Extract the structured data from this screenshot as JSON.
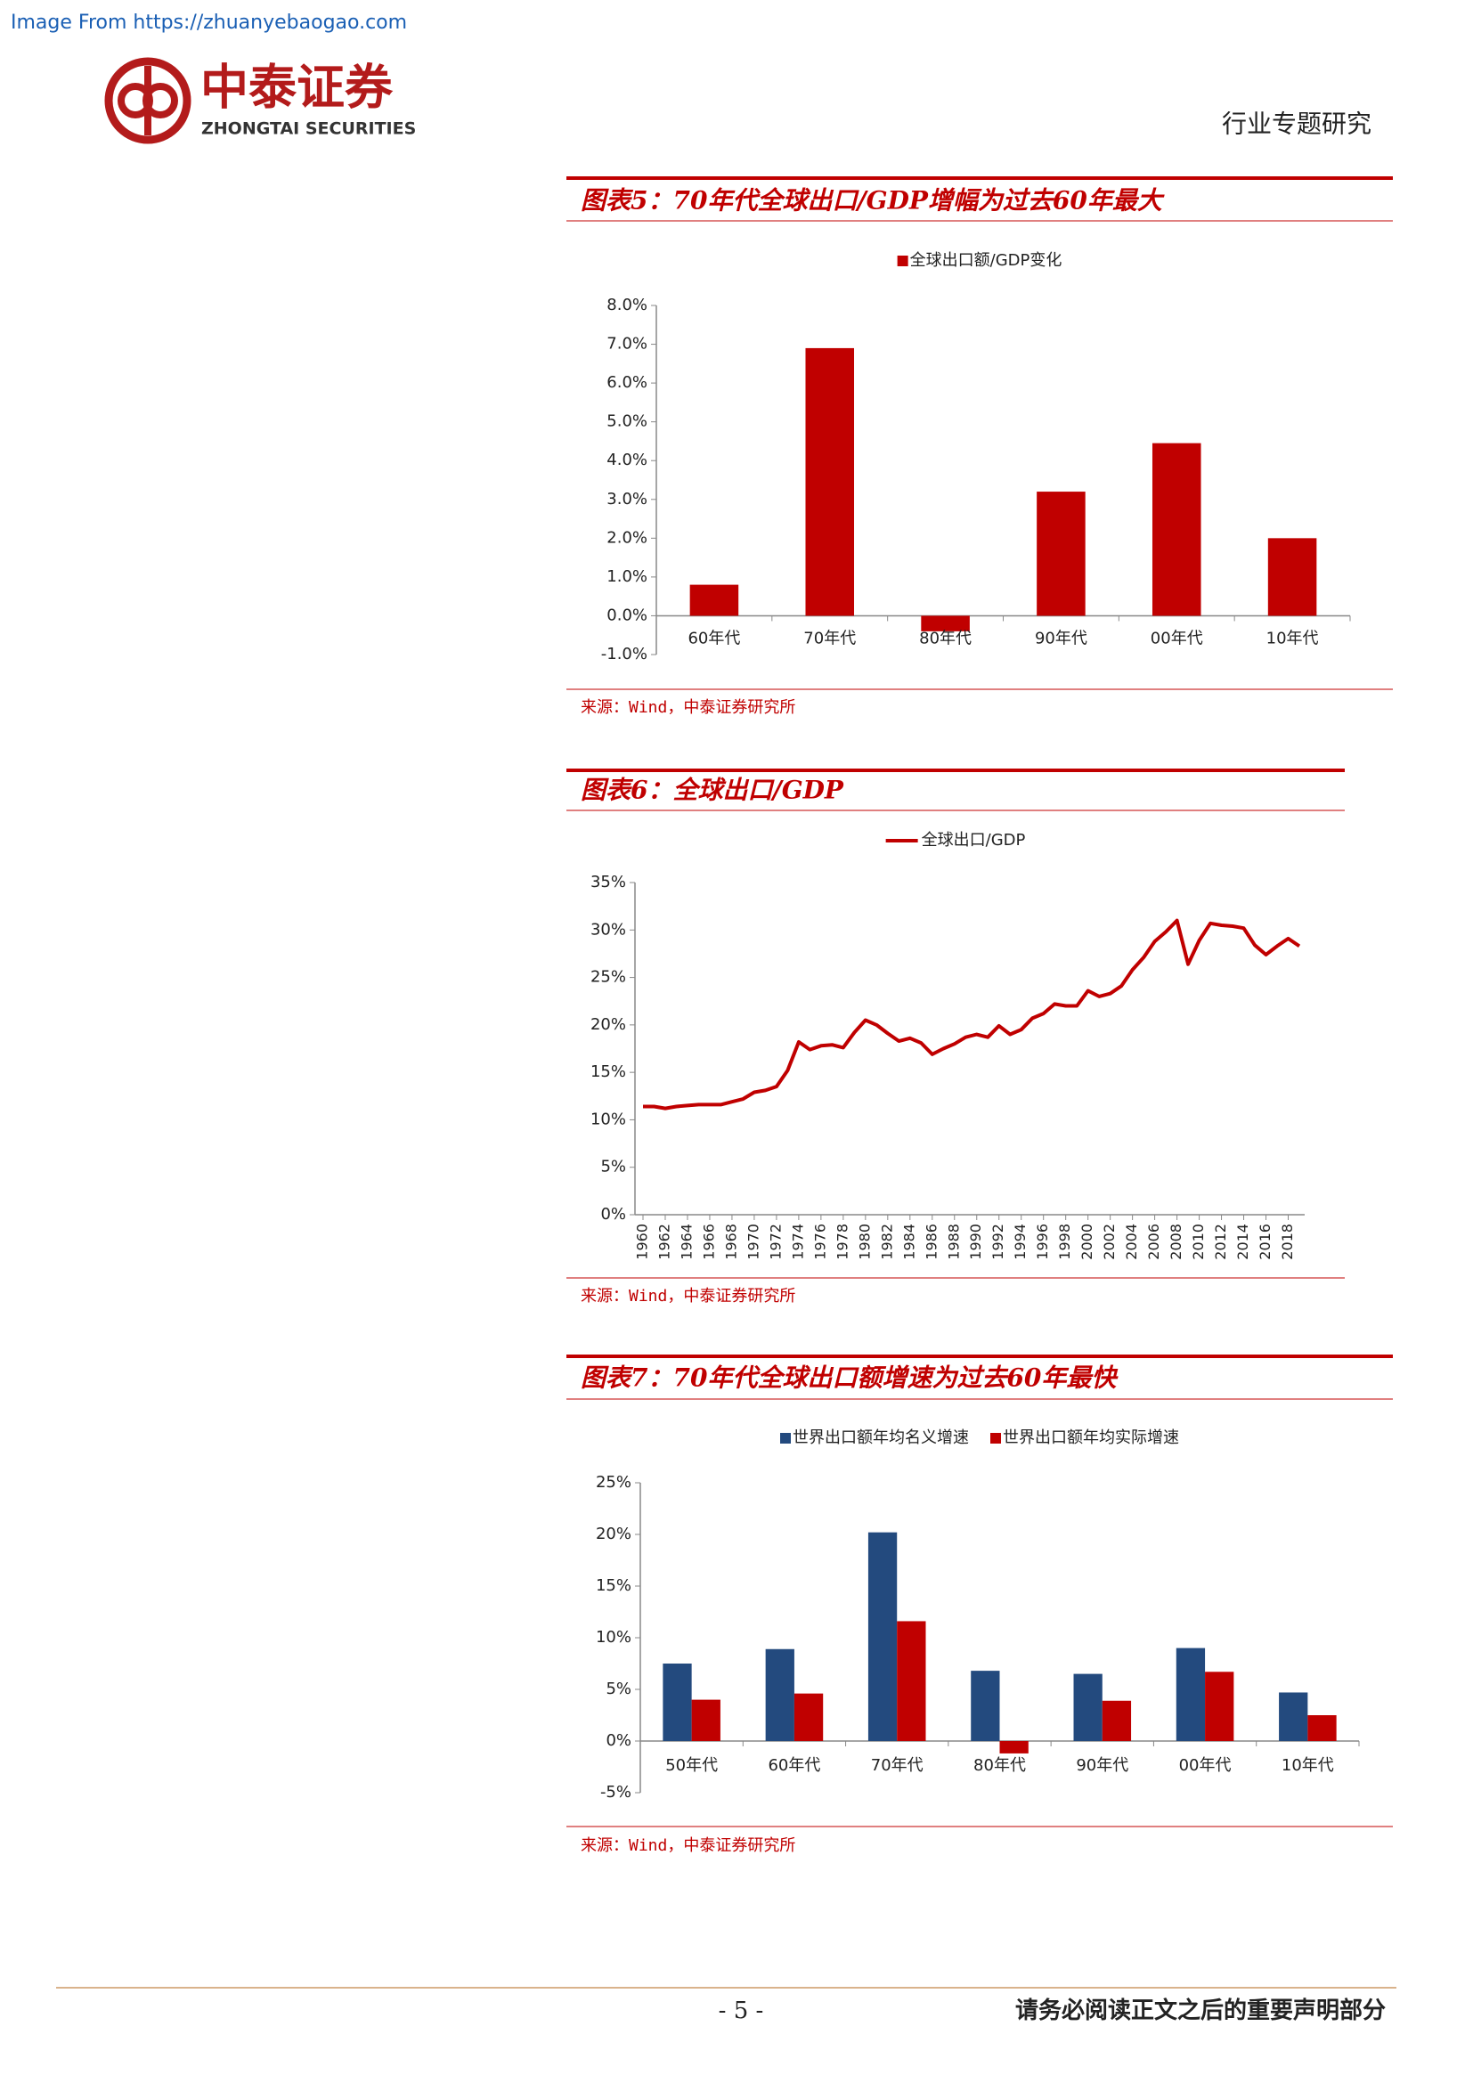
{
  "header": {
    "watermark": "Image From https://zhuanyebaogao.com",
    "logo_name": "中泰证券",
    "logo_name_en": "ZHONGTAI SECURITIES",
    "section": "行业专题研究"
  },
  "chart_data": [
    {
      "type": "bar",
      "title": "图表5：70年代全球出口/GDP增幅为过去60年最大",
      "source": "来源：Wind，中泰证券研究所",
      "categories": [
        "60年代",
        "70年代",
        "80年代",
        "90年代",
        "00年代",
        "10年代"
      ],
      "series": [
        {
          "name": "全球出口额/GDP变化",
          "color": "#c00000",
          "values": [
            0.8,
            6.9,
            -0.4,
            3.2,
            4.45,
            2.0
          ]
        }
      ],
      "ylim": [
        -1,
        8
      ],
      "yticks": [
        {
          "value": -1,
          "label": "-1.0%"
        },
        {
          "value": 0,
          "label": "0.0%"
        },
        {
          "value": 1,
          "label": "1.0%"
        },
        {
          "value": 2,
          "label": "2.0%"
        },
        {
          "value": 3,
          "label": "3.0%"
        },
        {
          "value": 4,
          "label": "4.0%"
        },
        {
          "value": 5,
          "label": "5.0%"
        },
        {
          "value": 6,
          "label": "6.0%"
        },
        {
          "value": 7,
          "label": "7.0%"
        },
        {
          "value": 8,
          "label": "8.0%"
        }
      ],
      "legend": "top",
      "grid": false
    },
    {
      "type": "line",
      "title": "图表6：全球出口/GDP",
      "source": "来源：Wind，中泰证券研究所",
      "x": [
        1960,
        1961,
        1962,
        1963,
        1964,
        1965,
        1966,
        1967,
        1968,
        1969,
        1970,
        1971,
        1972,
        1973,
        1974,
        1975,
        1976,
        1977,
        1978,
        1979,
        1980,
        1981,
        1982,
        1983,
        1984,
        1985,
        1986,
        1987,
        1988,
        1989,
        1990,
        1991,
        1992,
        1993,
        1994,
        1995,
        1996,
        1997,
        1998,
        1999,
        2000,
        2001,
        2002,
        2003,
        2004,
        2005,
        2006,
        2007,
        2008,
        2009,
        2010,
        2011,
        2012,
        2013,
        2014,
        2015,
        2016,
        2017,
        2018,
        2019
      ],
      "series": [
        {
          "name": "全球出口/GDP",
          "color": "#c00000",
          "values": [
            11.4,
            11.4,
            11.2,
            11.4,
            11.5,
            11.6,
            11.6,
            11.6,
            11.9,
            12.2,
            12.9,
            13.1,
            13.5,
            15.2,
            18.2,
            17.4,
            17.8,
            17.9,
            17.6,
            19.2,
            20.5,
            20.0,
            19.1,
            18.3,
            18.6,
            18.1,
            16.9,
            17.5,
            18.0,
            18.7,
            19.0,
            18.7,
            19.9,
            19.0,
            19.5,
            20.7,
            21.2,
            22.2,
            22.0,
            22.0,
            23.6,
            23.0,
            23.3,
            24.1,
            25.8,
            27.1,
            28.8,
            29.8,
            31.0,
            26.4,
            28.9,
            30.7,
            30.5,
            30.4,
            30.2,
            28.4,
            27.4,
            28.3,
            29.1,
            28.3
          ]
        }
      ],
      "xlim": [
        1960,
        2019
      ],
      "xticks": [
        1960,
        1962,
        1964,
        1966,
        1968,
        1970,
        1972,
        1974,
        1976,
        1978,
        1980,
        1982,
        1984,
        1986,
        1988,
        1990,
        1992,
        1994,
        1996,
        1998,
        2000,
        2002,
        2004,
        2006,
        2008,
        2010,
        2012,
        2014,
        2016,
        2018
      ],
      "ylim": [
        0,
        35
      ],
      "yticks": [
        {
          "value": 0,
          "label": "0%"
        },
        {
          "value": 5,
          "label": "5%"
        },
        {
          "value": 10,
          "label": "10%"
        },
        {
          "value": 15,
          "label": "15%"
        },
        {
          "value": 20,
          "label": "20%"
        },
        {
          "value": 25,
          "label": "25%"
        },
        {
          "value": 30,
          "label": "30%"
        },
        {
          "value": 35,
          "label": "35%"
        }
      ],
      "legend": "top",
      "grid": false
    },
    {
      "type": "bar",
      "title": "图表7：70年代全球出口额增速为过去60年最快",
      "source": "来源：Wind，中泰证券研究所",
      "categories": [
        "50年代",
        "60年代",
        "70年代",
        "80年代",
        "90年代",
        "00年代",
        "10年代"
      ],
      "series": [
        {
          "name": "世界出口额年均名义增速",
          "color": "#234a7e",
          "values": [
            7.5,
            8.9,
            20.2,
            6.8,
            6.5,
            9.0,
            4.7
          ]
        },
        {
          "name": "世界出口额年均实际增速",
          "color": "#c00000",
          "values": [
            4.0,
            4.6,
            11.6,
            -1.2,
            3.9,
            6.7,
            2.5
          ]
        }
      ],
      "ylim": [
        -5,
        25
      ],
      "yticks": [
        {
          "value": -5,
          "label": "-5%"
        },
        {
          "value": 0,
          "label": "0%"
        },
        {
          "value": 5,
          "label": "5%"
        },
        {
          "value": 10,
          "label": "10%"
        },
        {
          "value": 15,
          "label": "15%"
        },
        {
          "value": 20,
          "label": "20%"
        },
        {
          "value": 25,
          "label": "25%"
        }
      ],
      "legend": "top",
      "grid": false
    }
  ],
  "footer": {
    "page": "- 5 -",
    "notice": "请务必阅读正文之后的重要声明部分"
  }
}
